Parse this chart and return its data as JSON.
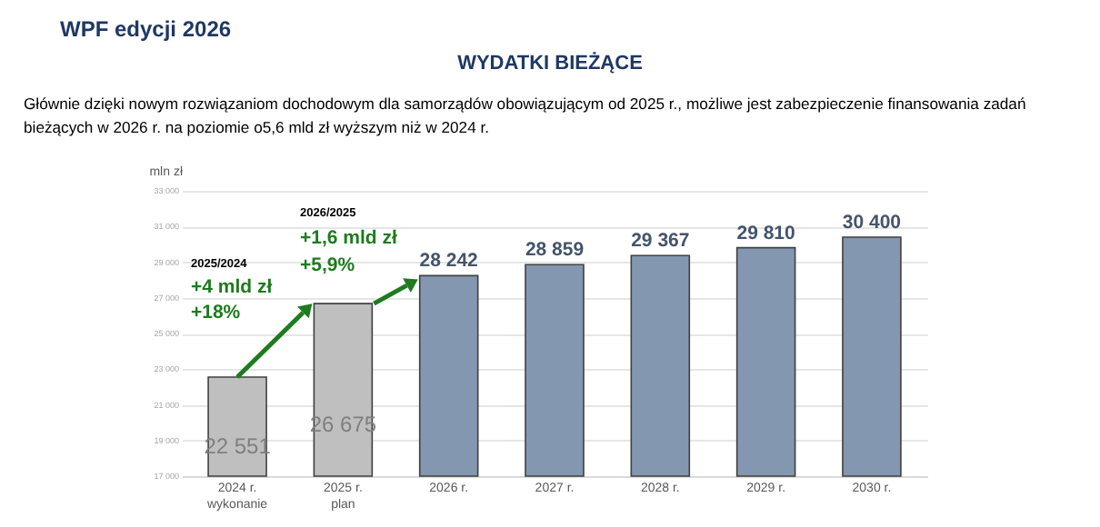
{
  "chart_data": {
    "type": "bar",
    "title": "WPF edycji 2026",
    "subtitle": "WYDATKI BIEŻĄCE",
    "ylabel": "mln zł",
    "categories": [
      "2024 r.\nwykonanie",
      "2025 r.\nplan",
      "2026 r.",
      "2027 r.",
      "2028 r.",
      "2029 r.",
      "2030 r."
    ],
    "values": [
      22551,
      26675,
      28242,
      28859,
      29367,
      29810,
      30400
    ],
    "colors": [
      "#bfbfbf",
      "#bfbfbf",
      "#8497b0",
      "#8497b0",
      "#8497b0",
      "#8497b0",
      "#8497b0"
    ],
    "value_labels": [
      "22 551",
      "26 675",
      "28 242",
      "28 859",
      "29 367",
      "29 810",
      "30 400"
    ],
    "ylim": [
      17000,
      33000
    ],
    "yticks": [
      {
        "value": 17000,
        "label": "17 000"
      },
      {
        "value": 19000,
        "label": "19 000"
      },
      {
        "value": 21000,
        "label": "21 000"
      },
      {
        "value": 23000,
        "label": "23 000"
      },
      {
        "value": 25000,
        "label": "25 000"
      },
      {
        "value": 27000,
        "label": "27 000"
      },
      {
        "value": 29000,
        "label": "29 000"
      },
      {
        "value": 31000,
        "label": "31 000"
      },
      {
        "value": 33000,
        "label": "33 000"
      }
    ],
    "grid": "y",
    "annotations": [
      "Głównie dzięki nowym rozwiązaniom dochodowym dla samorządów obowiązującym od 2025 r., możliwe jest zabezpieczenie finansowania zadań bieżących w 2026 r. na poziomie o5,6 mld zł wyższym niż w 2024 r.",
      "2025/2024",
      "+4 mld zł",
      "+18%",
      "2026/2025",
      "+1,6 mld zł",
      "+5,9%"
    ]
  }
}
